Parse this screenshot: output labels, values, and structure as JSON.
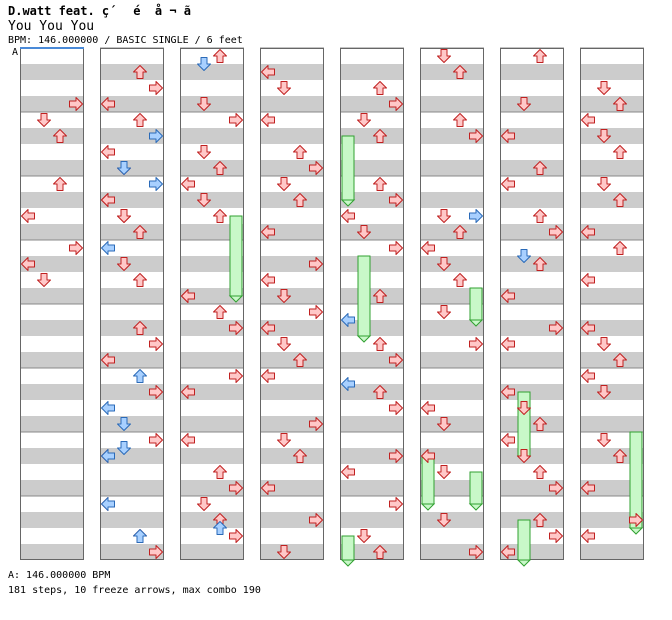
{
  "header": {
    "artist": "D.watt feat. ç´ é ­ å ¬ ã",
    "song": "You You You",
    "bpm_text": "BPM: 146.000000 / BASIC SINGLE / 6 feet"
  },
  "bpm_marker": "A",
  "footer": {
    "bpm_legend": "A: 146.000000 BPM",
    "stats": "181 steps, 10 freeze arrows, max combo 190"
  },
  "colors": {
    "note": "#ffc8c8",
    "note_stroke": "#c02020",
    "shock": "#a8d0ff",
    "shock_stroke": "#2a6ab8",
    "freeze": "#c8f8c8",
    "freeze_stroke": "#30a030",
    "stripe": "#cccccc"
  },
  "chart_data": {
    "type": "step-chart",
    "columns": 8,
    "measures_per_column": 8,
    "lanes": [
      "left",
      "down",
      "up",
      "right"
    ],
    "notes": [
      [
        0,
        0,
        3,
        "r"
      ],
      [
        0,
        1,
        1,
        "r"
      ],
      [
        0,
        1,
        2,
        "r"
      ],
      [
        0,
        2,
        0,
        "r"
      ],
      [
        0,
        2,
        2,
        "r"
      ],
      [
        0,
        3,
        0,
        "r"
      ],
      [
        0,
        3,
        1,
        "r"
      ],
      [
        0,
        3,
        3,
        "r"
      ],
      [
        1,
        0,
        0,
        "r"
      ],
      [
        1,
        0,
        2,
        "r"
      ],
      [
        1,
        0,
        3,
        "r"
      ],
      [
        1,
        1,
        2,
        "r"
      ],
      [
        1,
        1,
        4,
        "r"
      ],
      [
        1,
        1,
        5,
        "r"
      ],
      [
        1,
        2,
        0,
        "r"
      ],
      [
        1,
        2,
        1,
        "r"
      ],
      [
        1,
        2,
        2,
        "r"
      ],
      [
        1,
        2,
        4,
        "r"
      ],
      [
        1,
        2,
        5,
        "r"
      ],
      [
        1,
        3,
        2,
        "r"
      ],
      [
        1,
        3,
        5,
        "r"
      ],
      [
        1,
        4,
        0,
        "r"
      ],
      [
        1,
        4,
        2,
        "r"
      ],
      [
        1,
        4,
        3,
        "r"
      ],
      [
        1,
        5,
        3,
        "r"
      ],
      [
        1,
        6,
        0,
        "r"
      ],
      [
        1,
        6,
        3,
        "r"
      ],
      [
        1,
        7,
        0,
        "r"
      ],
      [
        1,
        7,
        2,
        "r"
      ],
      [
        1,
        7,
        3,
        "r"
      ],
      [
        2,
        0,
        1,
        "r"
      ],
      [
        2,
        0,
        2,
        "r"
      ],
      [
        2,
        1,
        1,
        "r"
      ],
      [
        2,
        1,
        2,
        "r"
      ],
      [
        2,
        1,
        3,
        "r"
      ],
      [
        2,
        2,
        1,
        "r"
      ],
      [
        2,
        2,
        2,
        "r"
      ],
      [
        2,
        2,
        4,
        "r"
      ],
      [
        2,
        3,
        0,
        "r"
      ],
      [
        2,
        3,
        4,
        "r"
      ],
      [
        2,
        4,
        2,
        "r"
      ],
      [
        2,
        4,
        3,
        "r"
      ],
      [
        2,
        5,
        0,
        "r"
      ],
      [
        2,
        5,
        3,
        "r"
      ],
      [
        2,
        6,
        0,
        "r"
      ],
      [
        2,
        6,
        2,
        "r"
      ],
      [
        2,
        6,
        3,
        "r"
      ],
      [
        2,
        7,
        1,
        "r"
      ],
      [
        2,
        7,
        2,
        "r"
      ],
      [
        2,
        7,
        3,
        "r"
      ],
      [
        3,
        0,
        0,
        "r"
      ],
      [
        3,
        0,
        1,
        "r"
      ],
      [
        3,
        1,
        0,
        "r"
      ],
      [
        3,
        1,
        2,
        "r"
      ],
      [
        3,
        1,
        3,
        "r"
      ],
      [
        3,
        2,
        1,
        "r"
      ],
      [
        3,
        2,
        2,
        "r"
      ],
      [
        3,
        2,
        4,
        "r"
      ],
      [
        3,
        3,
        0,
        "r"
      ],
      [
        3,
        3,
        1,
        "r"
      ],
      [
        3,
        3,
        3,
        "r"
      ],
      [
        3,
        4,
        0,
        "r"
      ],
      [
        3,
        4,
        1,
        "r"
      ],
      [
        3,
        4,
        2,
        "r"
      ],
      [
        3,
        4,
        3,
        "r"
      ],
      [
        3,
        5,
        0,
        "r"
      ],
      [
        3,
        5,
        3,
        "r"
      ],
      [
        3,
        6,
        1,
        "r"
      ],
      [
        3,
        6,
        2,
        "r"
      ],
      [
        3,
        6,
        4,
        "r"
      ],
      [
        3,
        7,
        1,
        "r"
      ],
      [
        3,
        7,
        3,
        "r"
      ],
      [
        4,
        0,
        2,
        "r"
      ],
      [
        4,
        0,
        3,
        "r"
      ],
      [
        4,
        1,
        1,
        "r"
      ],
      [
        4,
        1,
        2,
        "r"
      ],
      [
        4,
        2,
        1,
        "r"
      ],
      [
        4,
        2,
        2,
        "r"
      ],
      [
        4,
        2,
        3,
        "r"
      ],
      [
        4,
        2,
        4,
        "r"
      ],
      [
        4,
        3,
        2,
        "r"
      ],
      [
        4,
        3,
        3,
        "r"
      ],
      [
        4,
        4,
        2,
        "r"
      ],
      [
        4,
        4,
        3,
        "r"
      ],
      [
        4,
        5,
        2,
        "r"
      ],
      [
        4,
        5,
        3,
        "r"
      ],
      [
        4,
        6,
        3,
        "r"
      ],
      [
        4,
        6,
        4,
        "r"
      ],
      [
        4,
        7,
        1,
        "r"
      ],
      [
        4,
        7,
        2,
        "r"
      ],
      [
        4,
        7,
        3,
        "r"
      ],
      [
        5,
        0,
        1,
        "r"
      ],
      [
        5,
        0,
        2,
        "r"
      ],
      [
        5,
        1,
        2,
        "r"
      ],
      [
        5,
        1,
        3,
        "r"
      ],
      [
        5,
        2,
        1,
        "r"
      ],
      [
        5,
        2,
        2,
        "r"
      ],
      [
        5,
        3,
        0,
        "r"
      ],
      [
        5,
        3,
        1,
        "r"
      ],
      [
        5,
        3,
        2,
        "r"
      ],
      [
        5,
        4,
        1,
        "r"
      ],
      [
        5,
        4,
        3,
        "r"
      ],
      [
        5,
        5,
        0,
        "r"
      ],
      [
        5,
        5,
        1,
        "r"
      ],
      [
        5,
        6,
        0,
        "r"
      ],
      [
        5,
        6,
        1,
        "r"
      ],
      [
        5,
        7,
        1,
        "r"
      ],
      [
        5,
        7,
        3,
        "r"
      ],
      [
        6,
        0,
        1,
        "r"
      ],
      [
        6,
        0,
        2,
        "r"
      ],
      [
        6,
        1,
        0,
        "r"
      ],
      [
        6,
        1,
        2,
        "r"
      ],
      [
        6,
        2,
        0,
        "r"
      ],
      [
        6,
        2,
        2,
        "r"
      ],
      [
        6,
        2,
        3,
        "r"
      ],
      [
        6,
        3,
        0,
        "r"
      ],
      [
        6,
        3,
        2,
        "r"
      ],
      [
        6,
        4,
        0,
        "r"
      ],
      [
        6,
        4,
        3,
        "r"
      ],
      [
        6,
        5,
        0,
        "r"
      ],
      [
        6,
        5,
        1,
        "r"
      ],
      [
        6,
        5,
        2,
        "r"
      ],
      [
        6,
        6,
        0,
        "r"
      ],
      [
        6,
        6,
        1,
        "r"
      ],
      [
        6,
        6,
        2,
        "r"
      ],
      [
        6,
        6,
        3,
        "r"
      ],
      [
        6,
        7,
        0,
        "r"
      ],
      [
        6,
        7,
        2,
        "r"
      ],
      [
        6,
        7,
        3,
        "r"
      ],
      [
        7,
        0,
        1,
        "r"
      ],
      [
        7,
        0,
        2,
        "r"
      ],
      [
        7,
        1,
        0,
        "r"
      ],
      [
        7,
        1,
        1,
        "r"
      ],
      [
        7,
        1,
        2,
        "r"
      ],
      [
        7,
        2,
        0,
        "r"
      ],
      [
        7,
        2,
        1,
        "r"
      ],
      [
        7,
        2,
        2,
        "r"
      ],
      [
        7,
        3,
        0,
        "r"
      ],
      [
        7,
        3,
        2,
        "r"
      ],
      [
        7,
        4,
        0,
        "r"
      ],
      [
        7,
        4,
        1,
        "r"
      ],
      [
        7,
        4,
        2,
        "r"
      ],
      [
        7,
        5,
        0,
        "r"
      ],
      [
        7,
        5,
        1,
        "r"
      ],
      [
        7,
        6,
        0,
        "r"
      ],
      [
        7,
        6,
        1,
        "r"
      ],
      [
        7,
        6,
        2,
        "r"
      ],
      [
        7,
        7,
        0,
        "r"
      ],
      [
        7,
        7,
        3,
        "r"
      ],
      [
        1,
        1,
        1,
        "s"
      ],
      [
        1,
        1,
        3,
        "s"
      ],
      [
        1,
        2,
        3,
        "s"
      ],
      [
        1,
        3,
        4,
        "s"
      ],
      [
        1,
        5,
        0,
        "s"
      ],
      [
        1,
        5,
        1,
        "s"
      ],
      [
        1,
        5,
        2,
        "s"
      ],
      [
        1,
        6,
        4,
        "s"
      ],
      [
        1,
        7,
        2,
        "s"
      ],
      [
        1,
        7,
        4,
        "s"
      ]
    ],
    "shocks": [
      [
        2,
        0,
        0.125,
        1
      ],
      [
        4,
        5,
        0.125,
        0
      ],
      [
        4,
        4,
        0.125,
        0
      ],
      [
        5,
        2,
        0.5,
        3
      ],
      [
        1,
        6,
        0.125,
        1
      ],
      [
        6,
        3,
        0.125,
        1
      ],
      [
        2,
        7,
        0.375,
        2
      ]
    ],
    "freezes": [
      [
        2,
        2,
        0.5,
        3,
        1.25
      ],
      [
        4,
        1,
        0.25,
        0,
        1.0
      ],
      [
        4,
        3,
        0.125,
        1,
        1.25
      ],
      [
        5,
        3,
        0.625,
        3,
        0.5
      ],
      [
        6,
        5,
        0.25,
        1,
        1.0
      ],
      [
        7,
        5,
        0.875,
        3,
        1.5
      ],
      [
        5,
        6,
        0.25,
        0,
        0.75
      ],
      [
        5,
        6,
        0.5,
        3,
        0.5
      ],
      [
        4,
        7,
        0.5,
        0,
        0.5
      ],
      [
        6,
        7,
        0.25,
        1,
        0.875
      ]
    ]
  }
}
